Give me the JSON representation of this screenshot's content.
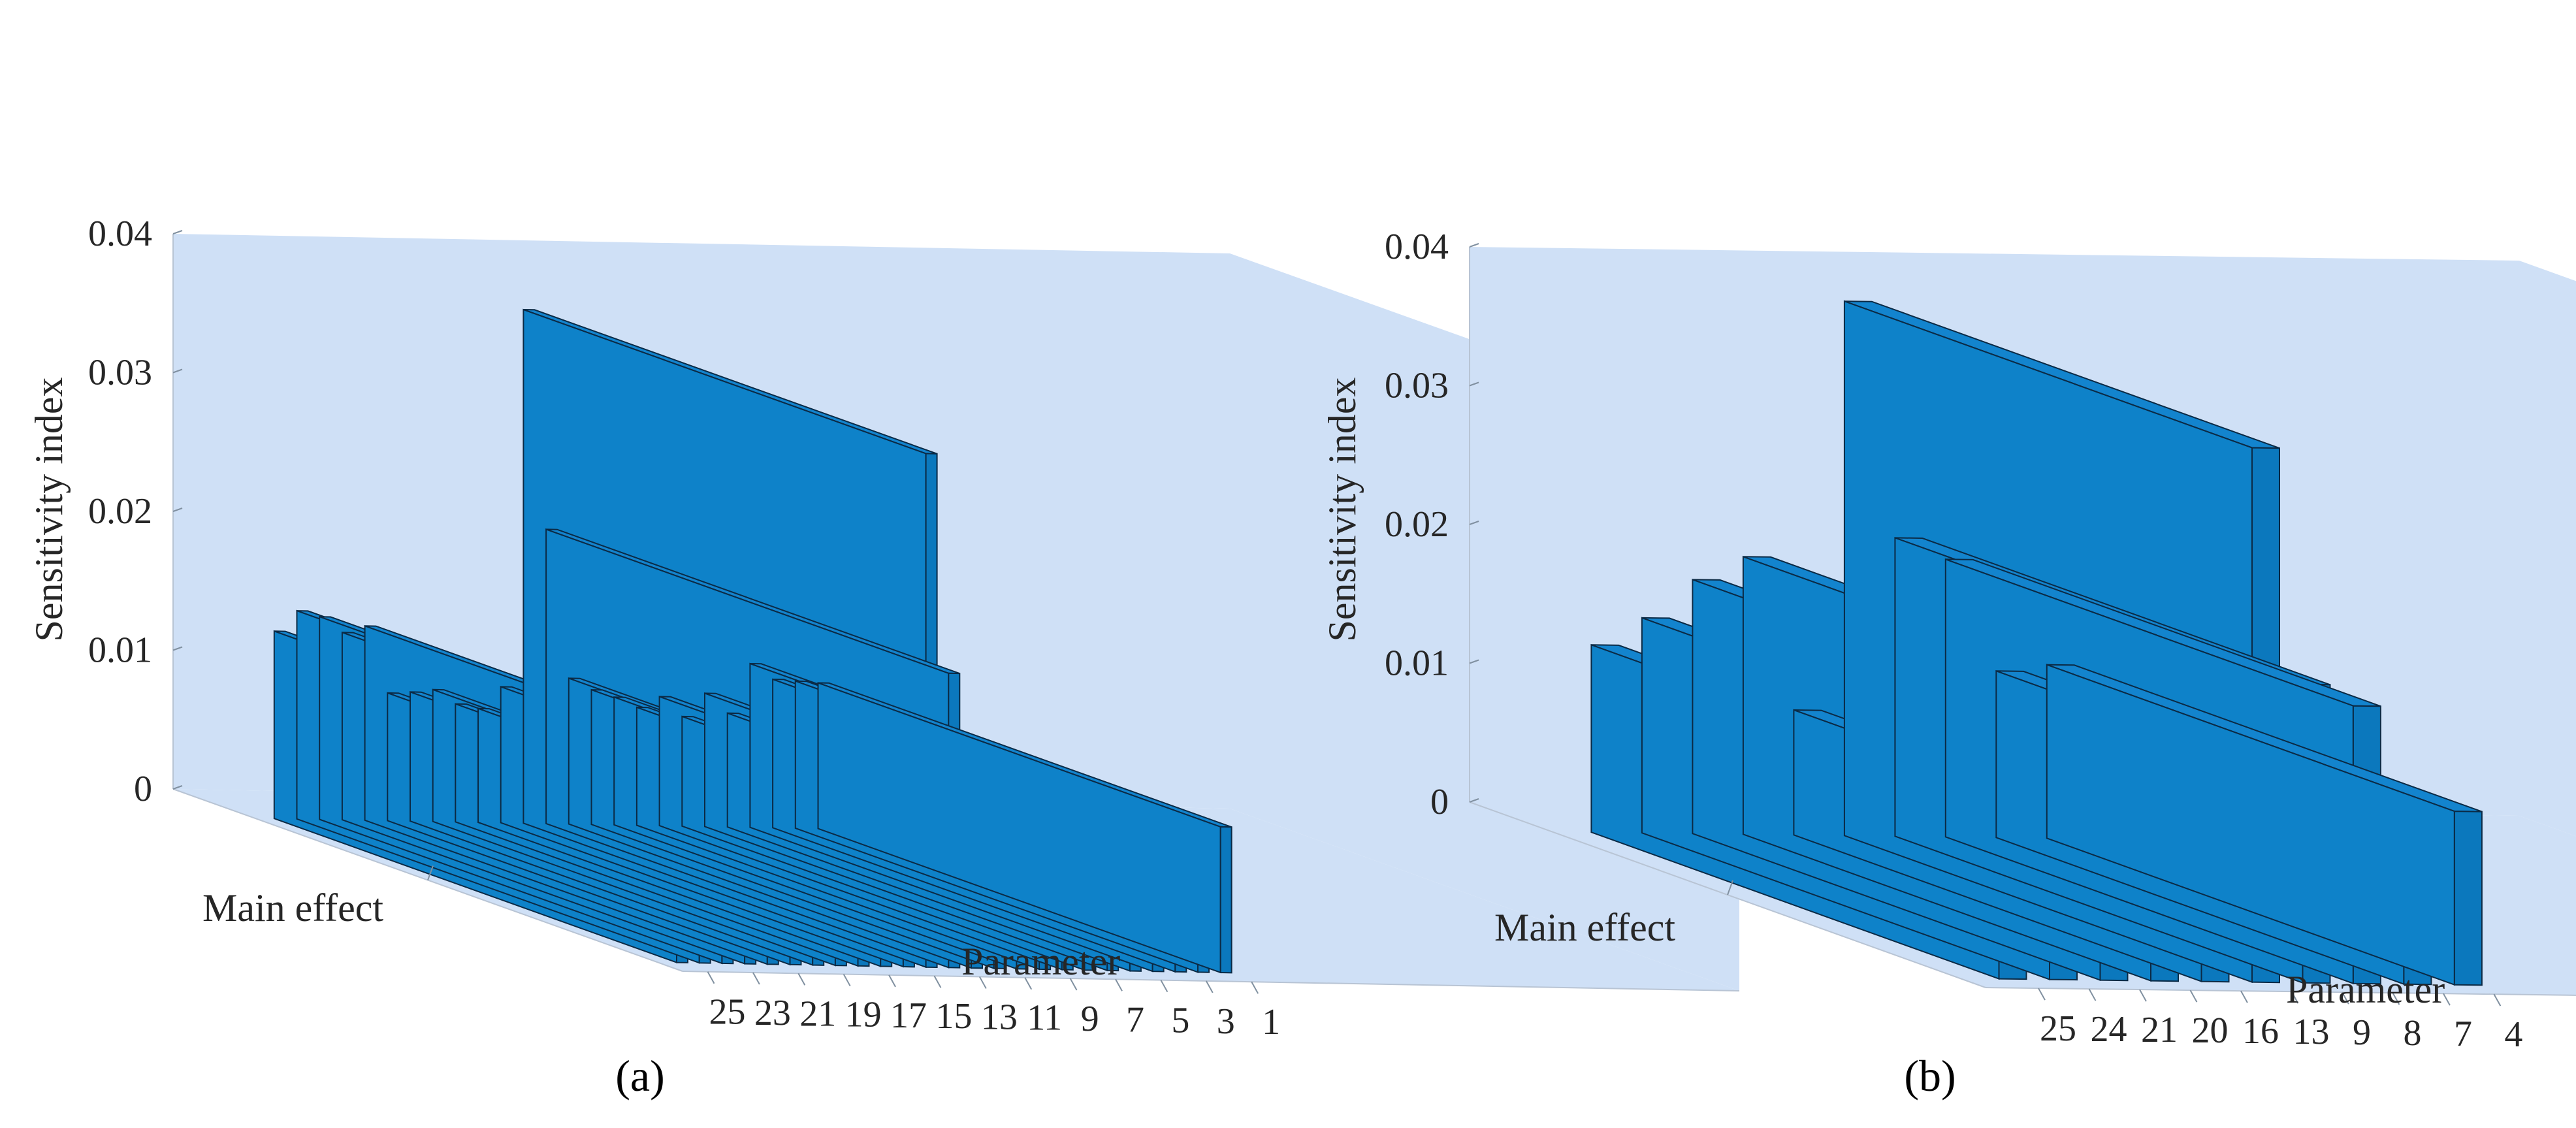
{
  "chart_data": [
    {
      "type": "bar3d",
      "panel_label": "(a)",
      "title": "",
      "xlabel": "Main effect",
      "ylabel": "Parameter",
      "zlabel": "Sensitivity index",
      "zlim": [
        0,
        0.04
      ],
      "zticks": [
        "0",
        "0.01",
        "0.02",
        "0.03",
        "0.04"
      ],
      "yticks": [
        "1",
        "3",
        "5",
        "7",
        "9",
        "11",
        "13",
        "15",
        "17",
        "19",
        "21",
        "23",
        "25"
      ],
      "series": [
        {
          "name": "Main effect",
          "parameters": [
            1,
            2,
            3,
            4,
            5,
            6,
            7,
            8,
            9,
            10,
            11,
            12,
            13,
            14,
            15,
            16,
            17,
            18,
            19,
            20,
            21,
            22,
            23,
            24,
            25
          ],
          "values": [
            0.0105,
            0.0106,
            0.0107,
            0.0118,
            0.0082,
            0.0096,
            0.0079,
            0.0093,
            0.0085,
            0.0092,
            0.0097,
            0.0105,
            0.0212,
            0.037,
            0.0098,
            0.0082,
            0.0085,
            0.0095,
            0.0093,
            0.0092,
            0.014,
            0.0135,
            0.0146,
            0.015,
            0.0135
          ]
        }
      ]
    },
    {
      "type": "bar3d",
      "panel_label": "(b)",
      "title": "",
      "xlabel": "Main effect",
      "ylabel": "Parameter",
      "zlabel": "Sensitivity index",
      "zlim": [
        0,
        0.04
      ],
      "zticks": [
        "0",
        "0.01",
        "0.02",
        "0.03",
        "0.04"
      ],
      "yticks": [
        "4",
        "7",
        "8",
        "9",
        "13",
        "16",
        "20",
        "21",
        "24",
        "25"
      ],
      "series": [
        {
          "name": "Main effect",
          "parameters": [
            4,
            7,
            8,
            9,
            13,
            16,
            20,
            21,
            24,
            25
          ],
          "values": [
            0.0125,
            0.012,
            0.02,
            0.0215,
            0.0385,
            0.009,
            0.02,
            0.0183,
            0.0155,
            0.0135
          ]
        }
      ]
    }
  ]
}
